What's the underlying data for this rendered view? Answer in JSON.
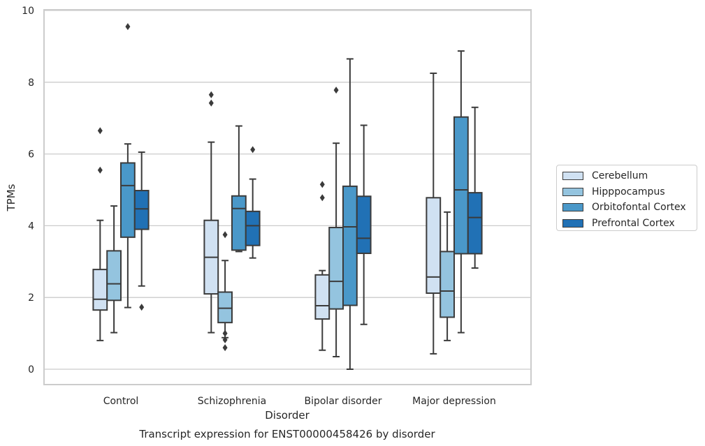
{
  "chart_data": {
    "type": "box",
    "title": "",
    "caption": "Transcript expression for ENST00000458426 by disorder",
    "xlabel": "Disorder",
    "ylabel": "TPMs",
    "ylim": [
      -0.45,
      10.05
    ],
    "yticks": [
      0,
      2,
      4,
      6,
      8,
      10
    ],
    "grid": true,
    "legend_position": "right",
    "categories": [
      "Control",
      "Schizophrenia",
      "Bipolar disorder",
      "Major depression"
    ],
    "series": [
      {
        "name": "Cerebellum",
        "color": "#d0e1f2",
        "boxes": [
          {
            "whislo": 0.8,
            "q1": 1.65,
            "med": 1.95,
            "q3": 2.78,
            "whishi": 4.15,
            "fliers": [
              5.55,
              6.65
            ]
          },
          {
            "whislo": 1.02,
            "q1": 2.1,
            "med": 3.12,
            "q3": 4.15,
            "whishi": 6.33,
            "fliers": [
              7.42,
              7.65
            ]
          },
          {
            "whislo": 0.53,
            "q1": 1.4,
            "med": 1.77,
            "q3": 2.63,
            "whishi": 2.75,
            "fliers": [
              4.78,
              5.15
            ]
          },
          {
            "whislo": 0.43,
            "q1": 2.12,
            "med": 2.57,
            "q3": 4.78,
            "whishi": 8.25,
            "fliers": []
          }
        ]
      },
      {
        "name": "Hipppocampus",
        "color": "#94c4df",
        "boxes": [
          {
            "whislo": 1.02,
            "q1": 1.92,
            "med": 2.38,
            "q3": 3.3,
            "whishi": 4.55,
            "fliers": []
          },
          {
            "whislo": 0.88,
            "q1": 1.3,
            "med": 1.7,
            "q3": 2.15,
            "whishi": 3.03,
            "fliers": [
              0.6,
              0.82,
              1.0,
              3.75
            ]
          },
          {
            "whislo": 0.35,
            "q1": 1.68,
            "med": 2.45,
            "q3": 3.95,
            "whishi": 6.3,
            "fliers": [
              7.78
            ]
          },
          {
            "whislo": 0.8,
            "q1": 1.45,
            "med": 2.18,
            "q3": 3.28,
            "whishi": 4.38,
            "fliers": []
          }
        ]
      },
      {
        "name": "Orbitofontal Cortex",
        "color": "#4a98c9",
        "boxes": [
          {
            "whislo": 1.72,
            "q1": 3.68,
            "med": 5.12,
            "q3": 5.75,
            "whishi": 6.28,
            "fliers": [
              9.55
            ]
          },
          {
            "whislo": 3.28,
            "q1": 3.32,
            "med": 4.48,
            "q3": 4.83,
            "whishi": 6.78,
            "fliers": []
          },
          {
            "whislo": 0.0,
            "q1": 1.78,
            "med": 3.97,
            "q3": 5.1,
            "whishi": 8.65,
            "fliers": []
          },
          {
            "whislo": 1.02,
            "q1": 3.22,
            "med": 5.0,
            "q3": 7.03,
            "whishi": 8.87,
            "fliers": []
          }
        ]
      },
      {
        "name": "Prefrontal Cortex",
        "color": "#2171b5",
        "boxes": [
          {
            "whislo": 2.32,
            "q1": 3.9,
            "med": 4.47,
            "q3": 4.98,
            "whishi": 6.05,
            "fliers": [
              1.73
            ]
          },
          {
            "whislo": 3.1,
            "q1": 3.45,
            "med": 4.0,
            "q3": 4.4,
            "whishi": 5.3,
            "fliers": [
              6.12
            ]
          },
          {
            "whislo": 1.25,
            "q1": 3.23,
            "med": 3.65,
            "q3": 4.82,
            "whishi": 6.8,
            "fliers": []
          },
          {
            "whislo": 2.82,
            "q1": 3.22,
            "med": 4.23,
            "q3": 4.92,
            "whishi": 7.3,
            "fliers": []
          }
        ]
      }
    ]
  }
}
